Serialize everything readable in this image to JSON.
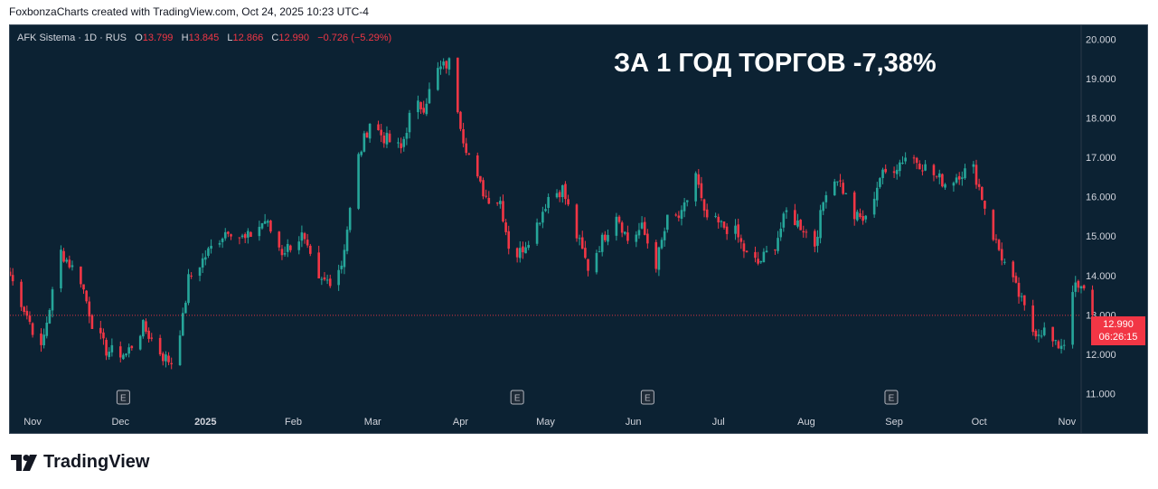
{
  "header": {
    "caption": "FoxbonzaCharts created with TradingView.com, Oct 24, 2025 10:23 UTC-4"
  },
  "legend": {
    "symbol": "AFK Sistema · 1D · RUS",
    "open_label": "O",
    "open": "13.799",
    "high_label": "H",
    "high": "13.845",
    "low_label": "L",
    "low": "12.866",
    "close_label": "C",
    "close": "12.990",
    "change": "−0.726 (−5.29%)"
  },
  "headline": "ЗА 1 ГОД ТОРГОВ -7,38%",
  "price_badge": {
    "price": "12.990",
    "countdown": "06:26:15"
  },
  "brand": {
    "name": "TradingView",
    "icon": "tradingview-logo-icon"
  },
  "colors": {
    "up": "#26a69a",
    "down": "#f23645",
    "background": "#0c2233",
    "axis_text": "#d1d4dc",
    "earnings_marker": "#b2b5be"
  },
  "chart_data": {
    "type": "candlestick",
    "title": "",
    "ylim": [
      10.6,
      20.35
    ],
    "y_ticks": [
      "20.000",
      "19.000",
      "18.000",
      "17.000",
      "16.000",
      "15.000",
      "14.000",
      "13.000",
      "12.000",
      "11.000"
    ],
    "y_tick_values": [
      20,
      19,
      18,
      17,
      16,
      15,
      14,
      13,
      12,
      11
    ],
    "x_ticks": [
      "Nov",
      "Dec",
      "2025",
      "Feb",
      "Mar",
      "Apr",
      "May",
      "Jun",
      "Jul",
      "Aug",
      "Sep",
      "Oct",
      "Nov"
    ],
    "x_tick_dates": [
      "2024-11-01",
      "2024-12-02",
      "2025-01-01",
      "2025-02-01",
      "2025-03-01",
      "2025-04-01",
      "2025-05-01",
      "2025-06-01",
      "2025-07-01",
      "2025-08-01",
      "2025-09-01",
      "2025-10-01",
      "2025-11-01"
    ],
    "x_range": [
      "2024-10-24",
      "2025-11-06"
    ],
    "current_price": 12.99,
    "earnings_markers": {
      "label": "E",
      "dates": [
        "2024-12-03",
        "2025-04-21",
        "2025-06-06",
        "2025-08-31"
      ]
    },
    "anchors": [
      [
        "2024-10-24",
        14.0
      ],
      [
        "2024-10-30",
        13.0
      ],
      [
        "2024-11-04",
        12.1
      ],
      [
        "2024-11-07",
        13.2
      ],
      [
        "2024-11-11",
        14.6
      ],
      [
        "2024-11-18",
        13.9
      ],
      [
        "2024-11-22",
        12.8
      ],
      [
        "2024-11-27",
        12.1
      ],
      [
        "2024-12-04",
        12.0
      ],
      [
        "2024-12-10",
        12.7
      ],
      [
        "2024-12-17",
        11.95
      ],
      [
        "2024-12-20",
        11.8
      ],
      [
        "2024-12-24",
        12.9
      ],
      [
        "2024-12-26",
        13.9
      ],
      [
        "2025-01-03",
        14.7
      ],
      [
        "2025-01-09",
        15.2
      ],
      [
        "2025-01-15",
        14.9
      ],
      [
        "2025-01-22",
        15.4
      ],
      [
        "2025-01-28",
        14.6
      ],
      [
        "2025-02-04",
        15.0
      ],
      [
        "2025-02-10",
        13.8
      ],
      [
        "2025-02-14",
        13.9
      ],
      [
        "2025-02-18",
        14.3
      ],
      [
        "2025-02-24",
        17.0
      ],
      [
        "2025-02-28",
        17.9
      ],
      [
        "2025-03-05",
        17.5
      ],
      [
        "2025-03-11",
        17.2
      ],
      [
        "2025-03-15",
        18.3
      ],
      [
        "2025-03-19",
        18.3
      ],
      [
        "2025-03-24",
        19.2
      ],
      [
        "2025-03-28",
        19.4
      ],
      [
        "2025-04-02",
        17.5
      ],
      [
        "2025-04-07",
        16.4
      ],
      [
        "2025-04-10",
        16.0
      ],
      [
        "2025-04-15",
        15.9
      ],
      [
        "2025-04-19",
        14.4
      ],
      [
        "2025-04-22",
        14.6
      ],
      [
        "2025-04-28",
        15.3
      ],
      [
        "2025-05-02",
        16.0
      ],
      [
        "2025-05-07",
        16.2
      ],
      [
        "2025-05-12",
        15.0
      ],
      [
        "2025-05-16",
        14.2
      ],
      [
        "2025-05-21",
        14.9
      ],
      [
        "2025-05-26",
        15.6
      ],
      [
        "2025-05-30",
        14.9
      ],
      [
        "2025-06-04",
        15.2
      ],
      [
        "2025-06-09",
        14.3
      ],
      [
        "2025-06-13",
        15.4
      ],
      [
        "2025-06-18",
        15.5
      ],
      [
        "2025-06-23",
        16.6
      ],
      [
        "2025-06-26",
        15.5
      ],
      [
        "2025-07-01",
        15.3
      ],
      [
        "2025-07-07",
        15.1
      ],
      [
        "2025-07-11",
        14.5
      ],
      [
        "2025-07-15",
        14.3
      ],
      [
        "2025-07-21",
        14.8
      ],
      [
        "2025-07-25",
        15.6
      ],
      [
        "2025-07-31",
        15.2
      ],
      [
        "2025-08-04",
        14.8
      ],
      [
        "2025-08-08",
        16.2
      ],
      [
        "2025-08-12",
        16.5
      ],
      [
        "2025-08-18",
        15.5
      ],
      [
        "2025-08-22",
        15.4
      ],
      [
        "2025-08-27",
        16.5
      ],
      [
        "2025-09-02",
        16.8
      ],
      [
        "2025-09-06",
        17.1
      ],
      [
        "2025-09-11",
        16.8
      ],
      [
        "2025-09-16",
        16.5
      ],
      [
        "2025-09-20",
        16.3
      ],
      [
        "2025-09-24",
        16.6
      ],
      [
        "2025-09-29",
        16.7
      ],
      [
        "2025-10-02",
        16.0
      ],
      [
        "2025-10-06",
        15.0
      ],
      [
        "2025-10-10",
        14.3
      ],
      [
        "2025-10-15",
        13.5
      ],
      [
        "2025-10-20",
        12.6
      ],
      [
        "2025-10-24",
        12.6
      ],
      [
        "2025-10-28",
        12.2
      ],
      [
        "2025-10-31",
        12.3
      ],
      [
        "2025-11-03",
        13.7
      ],
      [
        "2025-11-07",
        13.6
      ],
      [
        "2025-11-10",
        12.99
      ]
    ]
  }
}
